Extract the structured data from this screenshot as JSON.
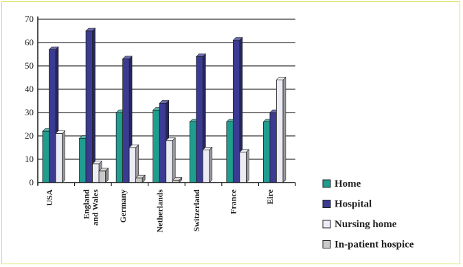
{
  "chart_data": {
    "type": "bar",
    "title": "",
    "xlabel": "",
    "ylabel": "",
    "ylim": [
      0,
      70
    ],
    "yticks": [
      0,
      10,
      20,
      30,
      40,
      50,
      60,
      70
    ],
    "grid": true,
    "legend_position": "bottom-right",
    "categories": [
      [
        "USA"
      ],
      [
        "England",
        "and Wales"
      ],
      [
        "Germany"
      ],
      [
        "Netherlands"
      ],
      [
        "Switzerland"
      ],
      [
        "France"
      ],
      [
        "Eire"
      ]
    ],
    "series": [
      {
        "name": "Home",
        "color": "#1f9e90",
        "values": [
          22,
          19,
          30,
          31,
          26,
          26,
          26
        ]
      },
      {
        "name": "Hospital",
        "color": "#3b3b94",
        "values": [
          57,
          65,
          53,
          34,
          54,
          61,
          30
        ]
      },
      {
        "name": "Nursing home",
        "color": "#ececf4",
        "values": [
          21,
          8,
          15,
          18,
          14,
          13,
          44
        ]
      },
      {
        "name": "In-patient hospice",
        "color": "#c9c9c9",
        "values": [
          0,
          5,
          2,
          1,
          0,
          0,
          0
        ]
      }
    ]
  }
}
